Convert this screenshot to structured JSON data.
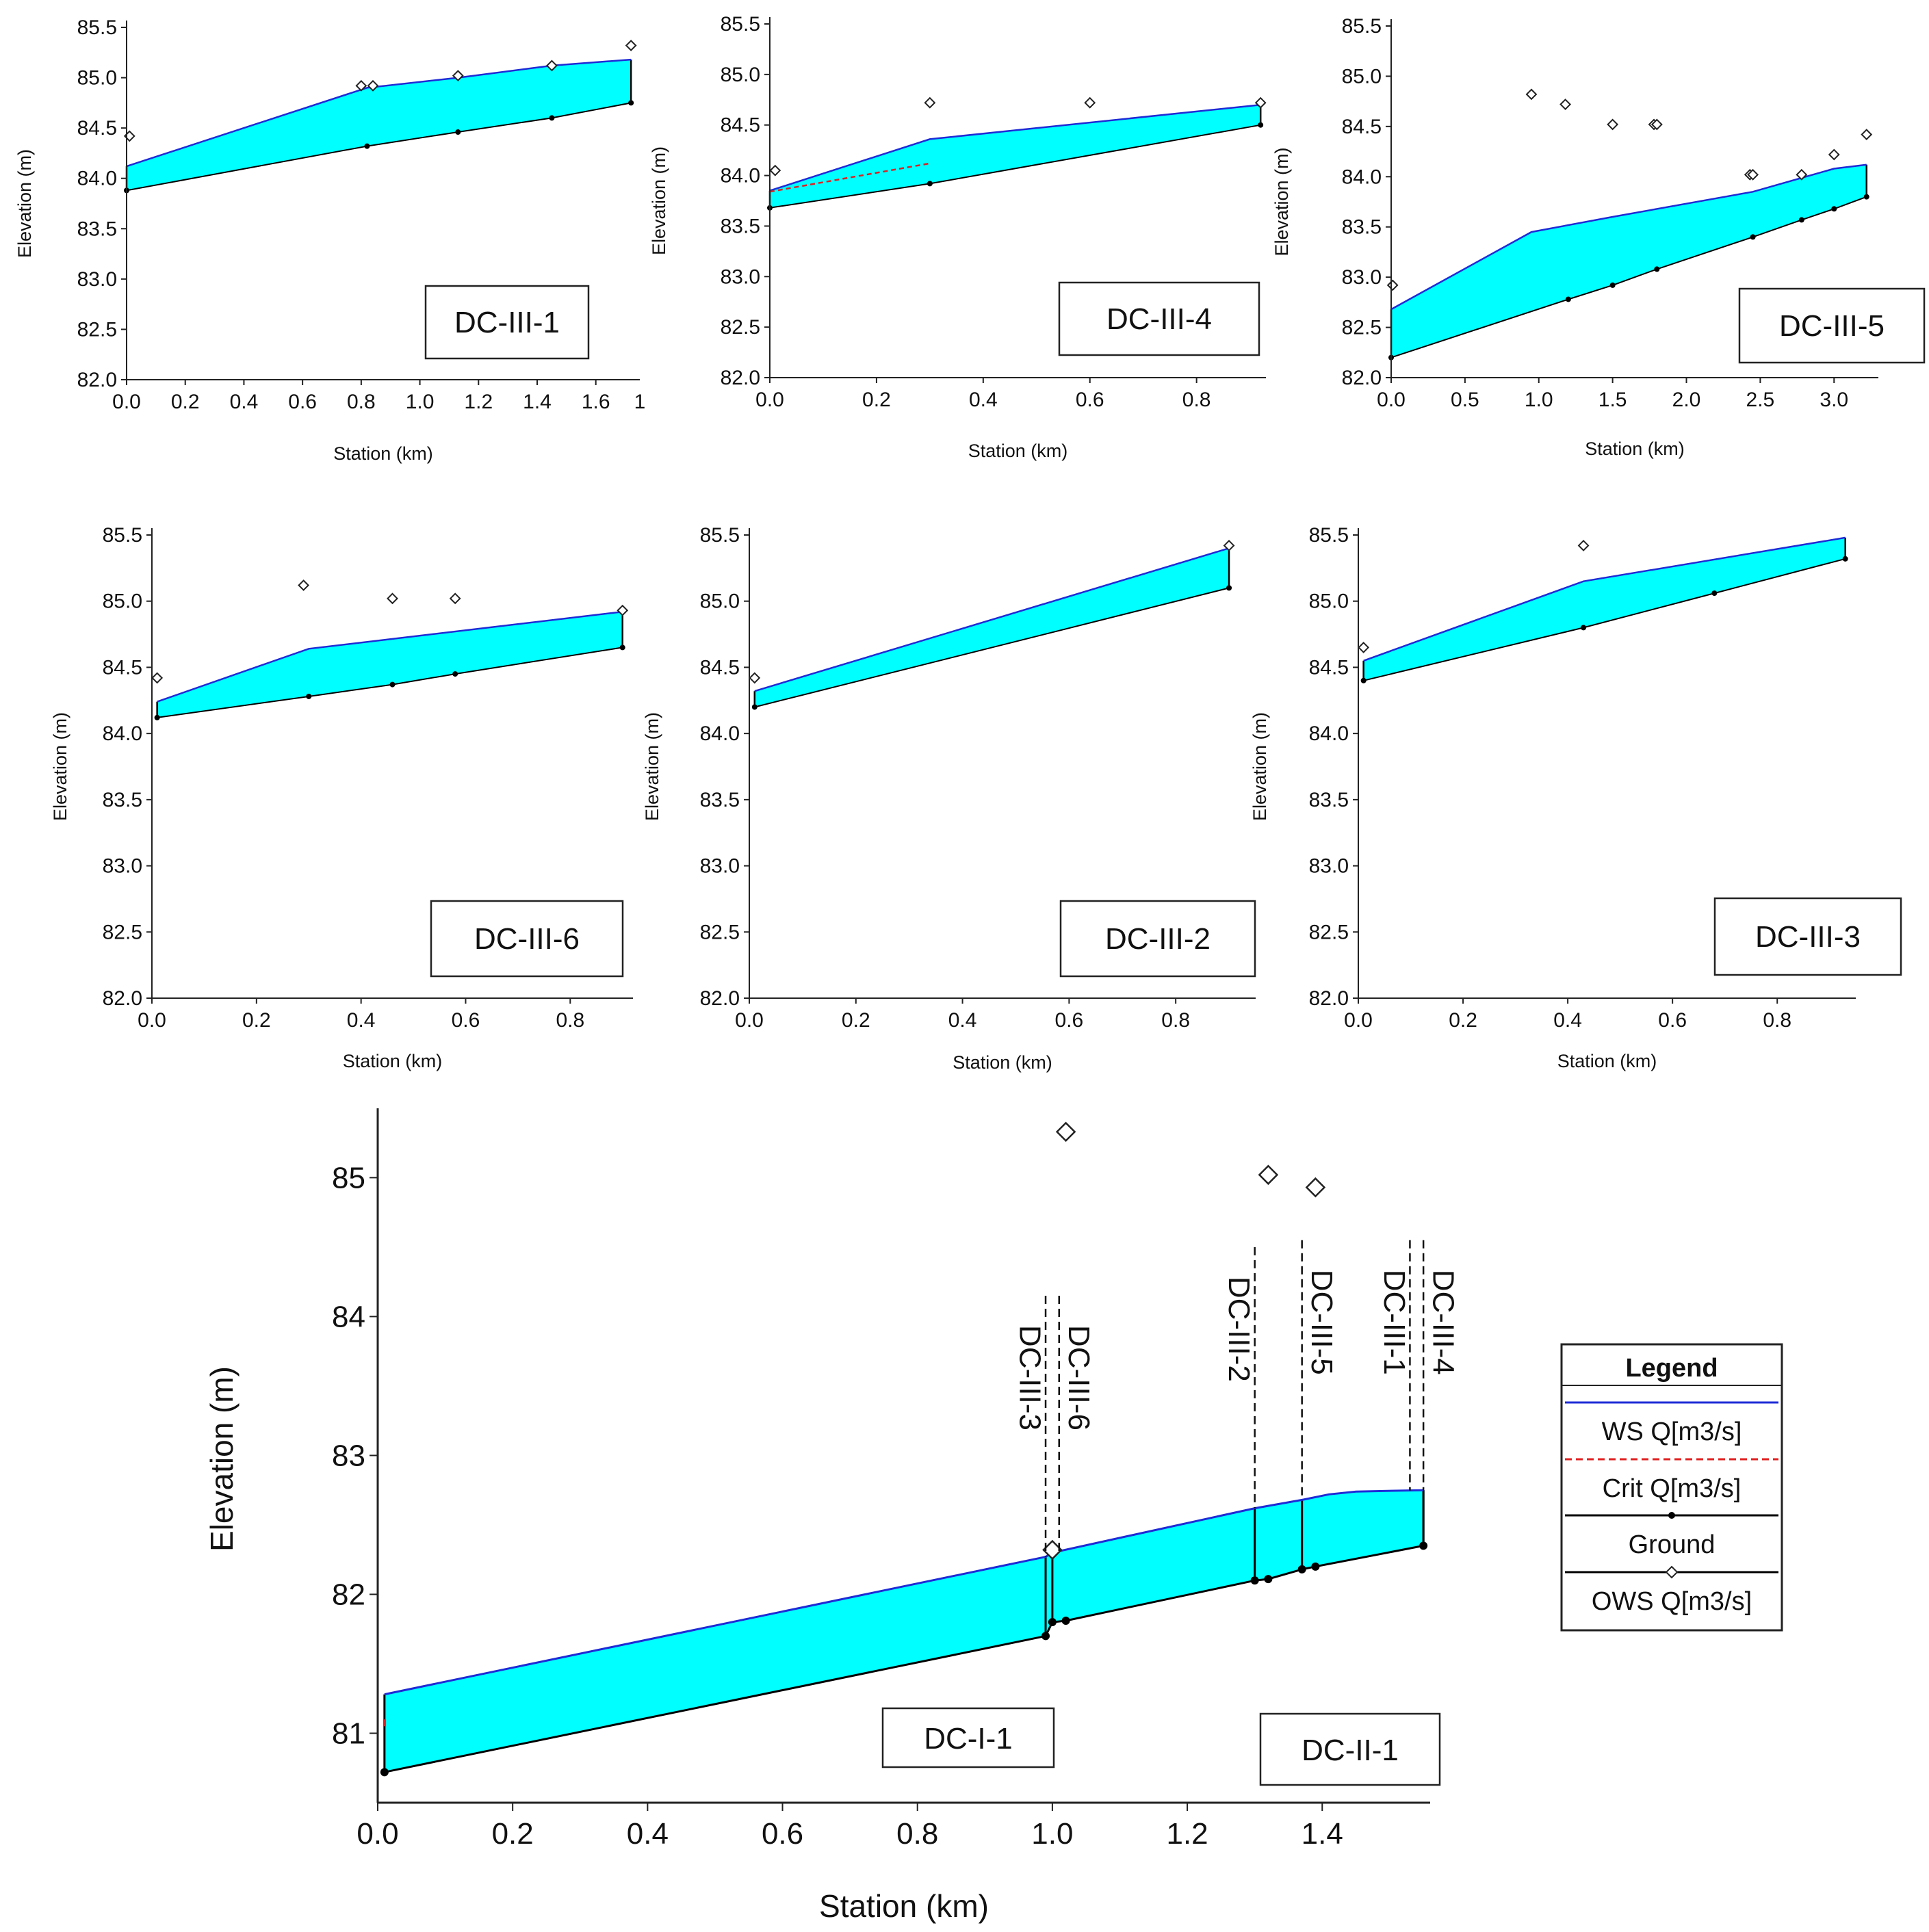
{
  "colors": {
    "fill": "#00ffff",
    "ws_line": "#1e2bd6",
    "crit_line": "#e02020",
    "ground_line": "#000000",
    "axis": "#222222"
  },
  "legend": {
    "title": "Legend",
    "items": [
      {
        "label": "WS  Q[m3/s]",
        "style": "ws"
      },
      {
        "label": "Crit  Q[m3/s]",
        "style": "crit"
      },
      {
        "label": "Ground",
        "style": "ground"
      },
      {
        "label": "OWS  Q[m3/s]",
        "style": "ows"
      }
    ]
  },
  "chart_data": [
    {
      "id": "dc-iii-1",
      "type": "area",
      "tag": "DC-III-1",
      "xlabel": "Station (km)",
      "ylabel": "Elevation (m)",
      "xlim": [
        0,
        1.75
      ],
      "ylim": [
        82.0,
        85.5
      ],
      "xticks": [
        0,
        0.2,
        0.4,
        0.6,
        0.8,
        1.0,
        1.2,
        1.4,
        1.6
      ],
      "xtick_labels": [
        "0.0",
        "0.2",
        "0.4",
        "0.6",
        "0.8",
        "1.0",
        "1.2",
        "1.4",
        "1.6"
      ],
      "extra_xtick_label": "1",
      "yticks": [
        82.0,
        82.5,
        83.0,
        83.5,
        84.0,
        84.5,
        85.0,
        85.5
      ],
      "ytick_labels": [
        "82.0",
        "82.5",
        "83.0",
        "83.5",
        "84.0",
        "84.5",
        "85.0",
        "85.5"
      ],
      "ws": {
        "x": [
          0,
          0.82,
          1.13,
          1.45,
          1.72
        ],
        "y": [
          84.12,
          84.9,
          85.0,
          85.12,
          85.18
        ]
      },
      "ground": {
        "x": [
          0,
          0.82,
          1.13,
          1.45,
          1.72
        ],
        "y": [
          83.88,
          84.32,
          84.46,
          84.6,
          84.75
        ]
      },
      "crit": null,
      "ows": {
        "x": [
          0.01,
          0.8,
          0.84,
          1.13,
          1.45,
          1.72
        ],
        "y": [
          84.42,
          84.92,
          84.92,
          85.02,
          85.12,
          85.32
        ]
      }
    },
    {
      "id": "dc-iii-4",
      "type": "area",
      "tag": "DC-III-4",
      "xlabel": "Station (km)",
      "ylabel": "Elevation (m)",
      "xlim": [
        0,
        0.93
      ],
      "ylim": [
        82.0,
        85.5
      ],
      "xticks": [
        0,
        0.2,
        0.4,
        0.6,
        0.8
      ],
      "xtick_labels": [
        "0.0",
        "0.2",
        "0.4",
        "0.6",
        "0.8"
      ],
      "extra_xtick_label": "",
      "yticks": [
        82.0,
        82.5,
        83.0,
        83.5,
        84.0,
        84.5,
        85.0,
        85.5
      ],
      "ytick_labels": [
        "82.0",
        "82.5",
        "83.0",
        "83.5",
        "84.0",
        "84.5",
        "85.0",
        "85.5"
      ],
      "ws": {
        "x": [
          0,
          0.3,
          0.92
        ],
        "y": [
          83.85,
          84.36,
          84.7
        ]
      },
      "ground": {
        "x": [
          0,
          0.3,
          0.92
        ],
        "y": [
          83.68,
          83.92,
          84.5
        ]
      },
      "crit": {
        "x": [
          0,
          0.3
        ],
        "y": [
          83.84,
          84.12
        ]
      },
      "ows": {
        "x": [
          0.01,
          0.3,
          0.6,
          0.92
        ],
        "y": [
          84.05,
          84.72,
          84.72,
          84.72
        ]
      }
    },
    {
      "id": "dc-iii-5",
      "type": "area",
      "tag": "DC-III-5",
      "xlabel": "Station (km)",
      "ylabel": "Elevation (m)",
      "xlim": [
        0,
        3.3
      ],
      "ylim": [
        82.0,
        85.5
      ],
      "xticks": [
        0,
        0.5,
        1.0,
        1.5,
        2.0,
        2.5,
        3.0
      ],
      "xtick_labels": [
        "0.0",
        "0.5",
        "1.0",
        "1.5",
        "2.0",
        "2.5",
        "3.0"
      ],
      "extra_xtick_label": "",
      "yticks": [
        82.0,
        82.5,
        83.0,
        83.5,
        84.0,
        84.5,
        85.0,
        85.5
      ],
      "ytick_labels": [
        "82.0",
        "82.5",
        "83.0",
        "83.5",
        "84.0",
        "84.5",
        "85.0",
        "85.5"
      ],
      "ws": {
        "x": [
          0,
          0.95,
          1.5,
          2.45,
          3.0,
          3.22
        ],
        "y": [
          82.68,
          83.45,
          83.6,
          83.85,
          84.08,
          84.12
        ]
      },
      "ground": {
        "x": [
          0,
          1.2,
          1.5,
          1.8,
          2.45,
          2.78,
          3.0,
          3.22
        ],
        "y": [
          82.2,
          82.78,
          82.92,
          83.08,
          83.4,
          83.57,
          83.68,
          83.8
        ]
      },
      "crit": null,
      "ows": {
        "x": [
          0.01,
          0.95,
          1.18,
          1.5,
          1.78,
          1.8,
          2.43,
          2.45,
          2.78,
          3.0,
          3.22
        ],
        "y": [
          82.92,
          84.82,
          84.72,
          84.52,
          84.52,
          84.52,
          84.02,
          84.02,
          84.02,
          84.22,
          84.42
        ]
      }
    },
    {
      "id": "dc-iii-6",
      "type": "area",
      "tag": "DC-III-6",
      "xlabel": "Station (km)",
      "ylabel": "Elevation (m)",
      "xlim": [
        0,
        0.92
      ],
      "ylim": [
        82.0,
        85.5
      ],
      "xticks": [
        0,
        0.2,
        0.4,
        0.6,
        0.8
      ],
      "xtick_labels": [
        "0.0",
        "0.2",
        "0.4",
        "0.6",
        "0.8"
      ],
      "extra_xtick_label": "",
      "yticks": [
        82.0,
        82.5,
        83.0,
        83.5,
        84.0,
        84.5,
        85.0,
        85.5
      ],
      "ytick_labels": [
        "82.0",
        "82.5",
        "83.0",
        "83.5",
        "84.0",
        "84.5",
        "85.0",
        "85.5"
      ],
      "ws": {
        "x": [
          0.01,
          0.3,
          0.9
        ],
        "y": [
          84.24,
          84.64,
          84.92
        ]
      },
      "ground": {
        "x": [
          0.01,
          0.3,
          0.46,
          0.58,
          0.9
        ],
        "y": [
          84.12,
          84.28,
          84.37,
          84.45,
          84.65
        ]
      },
      "crit": null,
      "ows": {
        "x": [
          0.01,
          0.29,
          0.46,
          0.58,
          0.9
        ],
        "y": [
          84.42,
          85.12,
          85.02,
          85.02,
          84.93
        ]
      }
    },
    {
      "id": "dc-iii-2",
      "type": "area",
      "tag": "DC-III-2",
      "xlabel": "Station (km)",
      "ylabel": "Elevation (m)",
      "xlim": [
        0,
        0.95
      ],
      "ylim": [
        82.0,
        85.5
      ],
      "xticks": [
        0,
        0.2,
        0.4,
        0.6,
        0.8
      ],
      "xtick_labels": [
        "0.0",
        "0.2",
        "0.4",
        "0.6",
        "0.8"
      ],
      "extra_xtick_label": "",
      "yticks": [
        82.0,
        82.5,
        83.0,
        83.5,
        84.0,
        84.5,
        85.0,
        85.5
      ],
      "ytick_labels": [
        "82.0",
        "82.5",
        "83.0",
        "83.5",
        "84.0",
        "84.5",
        "85.0",
        "85.5"
      ],
      "ws": {
        "x": [
          0.01,
          0.9
        ],
        "y": [
          84.32,
          85.4
        ]
      },
      "ground": {
        "x": [
          0.01,
          0.9
        ],
        "y": [
          84.2,
          85.1
        ]
      },
      "crit": null,
      "ows": {
        "x": [
          0.01,
          0.9
        ],
        "y": [
          84.42,
          85.42
        ]
      }
    },
    {
      "id": "dc-iii-3",
      "type": "area",
      "tag": "DC-III-3",
      "xlabel": "Station (km)",
      "ylabel": "Elevation (m)",
      "xlim": [
        0,
        0.95
      ],
      "ylim": [
        82.0,
        85.5
      ],
      "xticks": [
        0,
        0.2,
        0.4,
        0.6,
        0.8
      ],
      "xtick_labels": [
        "0.0",
        "0.2",
        "0.4",
        "0.6",
        "0.8"
      ],
      "extra_xtick_label": "",
      "yticks": [
        82.0,
        82.5,
        83.0,
        83.5,
        84.0,
        84.5,
        85.0,
        85.5
      ],
      "ytick_labels": [
        "82.0",
        "82.5",
        "83.0",
        "83.5",
        "84.0",
        "84.5",
        "85.0",
        "85.5"
      ],
      "ws": {
        "x": [
          0.01,
          0.43,
          0.93
        ],
        "y": [
          84.55,
          85.15,
          85.48
        ]
      },
      "ground": {
        "x": [
          0.01,
          0.43,
          0.68,
          0.93
        ],
        "y": [
          84.4,
          84.8,
          85.06,
          85.32
        ]
      },
      "crit": null,
      "ows": {
        "x": [
          0.01,
          0.43
        ],
        "y": [
          84.65,
          85.42
        ]
      }
    },
    {
      "id": "main",
      "type": "area",
      "tag": "",
      "xlabel": "Station (km)",
      "ylabel": "Elevation (m)",
      "xlim": [
        0,
        1.56
      ],
      "ylim": [
        80.5,
        85.45
      ],
      "xticks": [
        0,
        0.2,
        0.4,
        0.6,
        0.8,
        1.0,
        1.2,
        1.4
      ],
      "xtick_labels": [
        "0.0",
        "0.2",
        "0.4",
        "0.6",
        "0.8",
        "1.0",
        "1.2",
        "1.4"
      ],
      "extra_xtick_label": "",
      "yticks": [
        81,
        82,
        83,
        84,
        85
      ],
      "ytick_labels": [
        "81",
        "82",
        "83",
        "84",
        "85"
      ],
      "ws": {
        "x": [
          0.01,
          0.99,
          1.0,
          1.3,
          1.37,
          1.41,
          1.45,
          1.55
        ],
        "y": [
          81.28,
          82.27,
          82.3,
          82.62,
          82.68,
          82.72,
          82.74,
          82.75
        ]
      },
      "ground": {
        "x": [
          0.01,
          0.99,
          1.0,
          1.02,
          1.3,
          1.32,
          1.37,
          1.39,
          1.55
        ],
        "y": [
          80.72,
          81.7,
          81.8,
          81.81,
          82.1,
          82.11,
          82.18,
          82.2,
          82.35
        ]
      },
      "crit": {
        "x": [
          0.01,
          0.01
        ],
        "y": [
          81.05,
          81.1
        ]
      },
      "ows": {
        "x": [
          1.0,
          1.02,
          1.32,
          1.39
        ],
        "y": [
          82.32,
          85.33,
          85.02,
          84.93
        ]
      },
      "verticals": [
        0.99,
        1.0,
        1.3,
        1.37,
        1.55
      ],
      "junctions": [
        {
          "label": "DC-III-3",
          "x": 0.99,
          "top": 84.15,
          "side": "left"
        },
        {
          "label": "DC-III-6",
          "x": 1.01,
          "top": 84.15,
          "side": "right"
        },
        {
          "label": "DC-III-2",
          "x": 1.3,
          "top": 84.5,
          "side": "left"
        },
        {
          "label": "DC-III-5",
          "x": 1.37,
          "top": 84.55,
          "side": "right"
        },
        {
          "label": "DC-III-1",
          "x": 1.53,
          "top": 84.55,
          "side": "left"
        },
        {
          "label": "DC-III-4",
          "x": 1.55,
          "top": 84.55,
          "side": "right"
        }
      ],
      "boxes": [
        {
          "label": "DC-I-1"
        },
        {
          "label": "DC-II-1"
        }
      ]
    }
  ]
}
